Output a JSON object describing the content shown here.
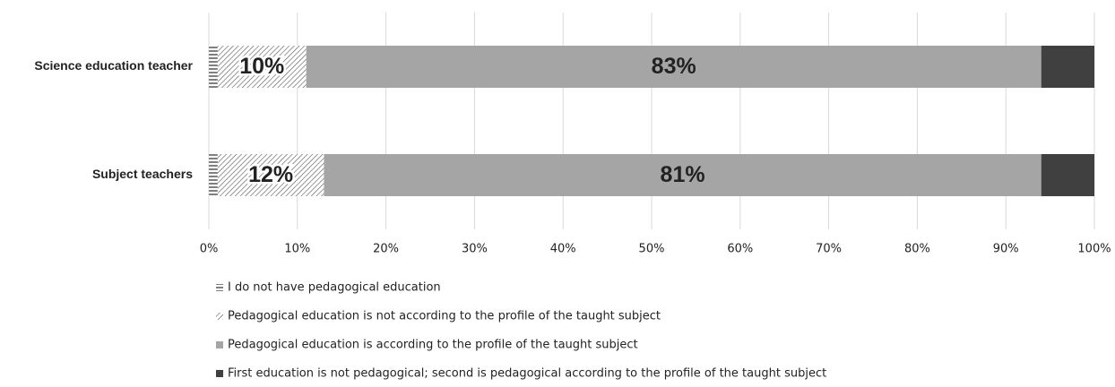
{
  "chart_data": {
    "type": "stacked-bar-horizontal",
    "categories": [
      "Science education teacher",
      "Subject teachers"
    ],
    "series": [
      {
        "name": "I do not have pedagogical education",
        "color": "#000000",
        "pattern": "horizontal-lines",
        "values": [
          1,
          1
        ]
      },
      {
        "name": "Pedagogical education is not according to the profile of the taught subject",
        "color": "#555555",
        "pattern": "diagonal-hatch",
        "values": [
          10,
          12
        ],
        "value_labels": [
          "10%",
          "12%"
        ]
      },
      {
        "name": "Pedagogical education is according to the profile of the taught subject",
        "color": "#a5a5a5",
        "values": [
          83,
          81
        ],
        "value_labels": [
          "83%",
          "81%"
        ]
      },
      {
        "name": "First education is not pedagogical; second is pedagogical according to the profile of the taught subject",
        "color": "#404040",
        "values": [
          6,
          6
        ]
      }
    ],
    "xlim": [
      0,
      100
    ],
    "xticks": [
      {
        "value": 0,
        "label": "0%"
      },
      {
        "value": 10,
        "label": "10%"
      },
      {
        "value": 20,
        "label": "20%"
      },
      {
        "value": 30,
        "label": "30%"
      },
      {
        "value": 40,
        "label": "40%"
      },
      {
        "value": 50,
        "label": "50%"
      },
      {
        "value": 60,
        "label": "60%"
      },
      {
        "value": 70,
        "label": "70%"
      },
      {
        "value": 80,
        "label": "80%"
      },
      {
        "value": 90,
        "label": "90%"
      },
      {
        "value": 100,
        "label": "100%"
      }
    ],
    "grid": true,
    "legend": "bottom"
  }
}
